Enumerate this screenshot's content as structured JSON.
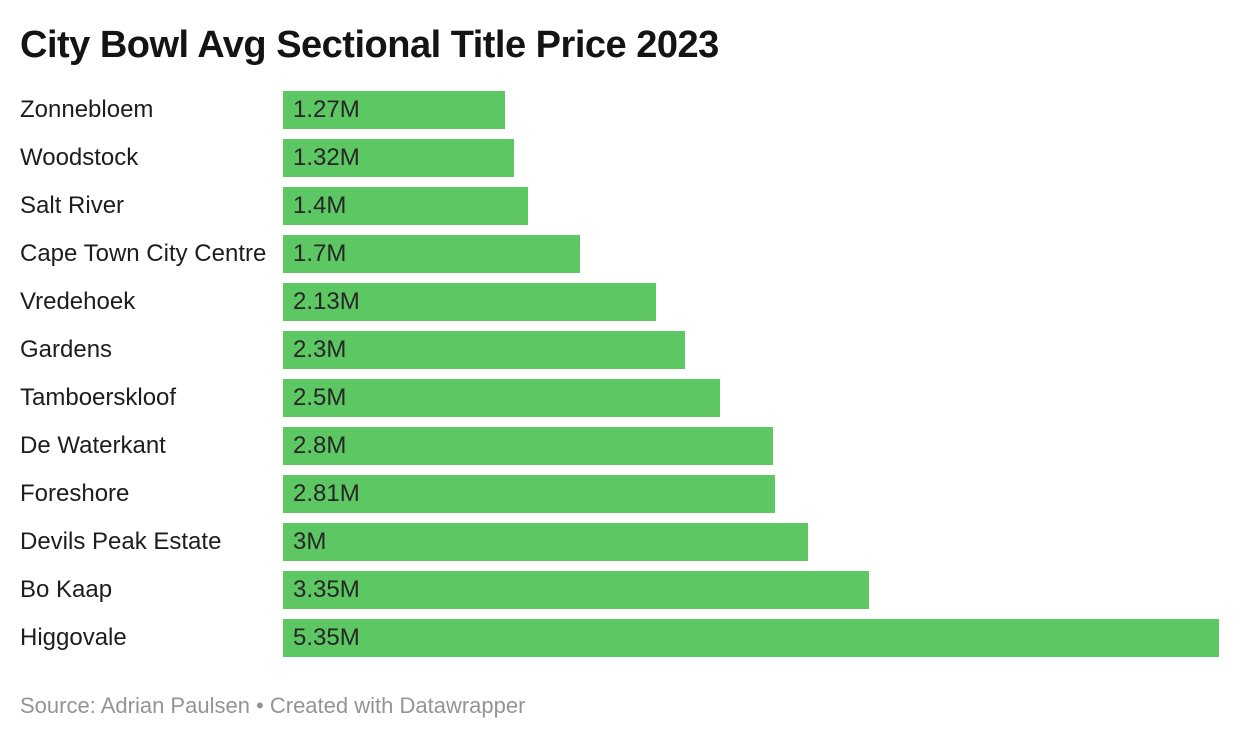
{
  "header": {
    "title": "City Bowl Avg Sectional Title Price 2023"
  },
  "chart_data": {
    "type": "bar",
    "orientation": "horizontal",
    "title": "City Bowl Avg Sectional Title Price 2023",
    "xlabel": "",
    "ylabel": "",
    "xlim": [
      0,
      5.35
    ],
    "grid": false,
    "legend": false,
    "unit": "M",
    "bar_color": "#5dc763",
    "categories": [
      "Zonnebloem",
      "Woodstock",
      "Salt River",
      "Cape Town City Centre",
      "Vredehoek",
      "Gardens",
      "Tamboerskloof",
      "De Waterkant",
      "Foreshore",
      "Devils Peak Estate",
      "Bo Kaap",
      "Higgovale"
    ],
    "values": [
      1.27,
      1.32,
      1.4,
      1.7,
      2.13,
      2.3,
      2.5,
      2.8,
      2.81,
      3,
      3.35,
      5.35
    ],
    "value_labels": [
      "1.27M",
      "1.32M",
      "1.4M",
      "1.7M",
      "2.13M",
      "2.3M",
      "2.5M",
      "2.8M",
      "2.81M",
      "3M",
      "3.35M",
      "5.35M"
    ]
  },
  "footer": {
    "text": "Source: Adrian Paulsen • Created with Datawrapper"
  }
}
